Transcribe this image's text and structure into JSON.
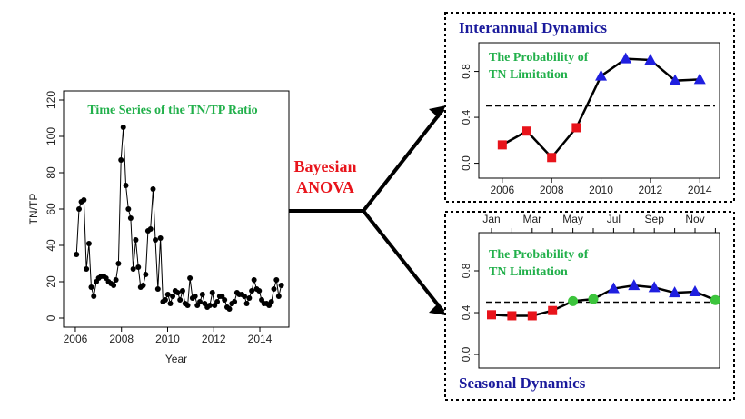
{
  "chart_data": [
    {
      "type": "line",
      "title": "Time Series of the TN/TP Ratio",
      "xlabel": "Year",
      "ylabel": "TN/TP",
      "x": [
        2006.05,
        2006.16,
        2006.26,
        2006.37,
        2006.48,
        2006.59,
        2006.69,
        2006.8,
        2006.91,
        2007.01,
        2007.12,
        2007.23,
        2007.33,
        2007.44,
        2007.55,
        2007.66,
        2007.76,
        2007.87,
        2007.98,
        2008.08,
        2008.19,
        2008.3,
        2008.4,
        2008.51,
        2008.62,
        2008.73,
        2008.83,
        2008.94,
        2009.05,
        2009.15,
        2009.26,
        2009.37,
        2009.47,
        2009.58,
        2009.69,
        2009.8,
        2009.9,
        2010.01,
        2010.12,
        2010.22,
        2010.33,
        2010.44,
        2010.54,
        2010.65,
        2010.76,
        2010.87,
        2010.97,
        2011.08,
        2011.19,
        2011.29,
        2011.4,
        2011.51,
        2011.61,
        2011.72,
        2011.83,
        2011.94,
        2012.04,
        2012.15,
        2012.26,
        2012.36,
        2012.47,
        2012.58,
        2012.68,
        2012.79,
        2012.9,
        2013.01,
        2013.11,
        2013.22,
        2013.33,
        2013.43,
        2013.54,
        2013.65,
        2013.75,
        2013.86,
        2013.97,
        2014.08,
        2014.18,
        2014.29,
        2014.4,
        2014.5,
        2014.61,
        2014.72,
        2014.82,
        2014.93
      ],
      "values": [
        35,
        60,
        64,
        65,
        27,
        41,
        17,
        12,
        20,
        22,
        23,
        23,
        22,
        20,
        19,
        18,
        21,
        30,
        87,
        105,
        73,
        60,
        55,
        27,
        43,
        28,
        17,
        18,
        24,
        48,
        49,
        71,
        43,
        16,
        44,
        9,
        10,
        13,
        8,
        12,
        15,
        14,
        10,
        15,
        8,
        7,
        22,
        11,
        12,
        7,
        9,
        13,
        8,
        6,
        7,
        14,
        7,
        9,
        12,
        12,
        10,
        6,
        5,
        8,
        9,
        14,
        13,
        13,
        12,
        8,
        11,
        15,
        21,
        16,
        15,
        10,
        8,
        8,
        7,
        9,
        16,
        21,
        12,
        18
      ],
      "color": "#000000",
      "xlim": [
        2005.49,
        2015.26
      ],
      "xticks": [
        2006,
        2008,
        2010,
        2012,
        2014
      ],
      "ylim": [
        -5,
        125
      ],
      "yticks": [
        0,
        20,
        40,
        60,
        80,
        100,
        120
      ]
    },
    {
      "type": "line",
      "title": "Interannual Dynamics",
      "annotation": [
        "The Probability of",
        "TN Limitation"
      ],
      "x": [
        2006,
        2007,
        2008,
        2009,
        2010,
        2011,
        2012,
        2013,
        2014
      ],
      "values": [
        0.16,
        0.28,
        0.05,
        0.31,
        0.76,
        0.91,
        0.9,
        0.72,
        0.73
      ],
      "marker_colors": [
        "#e8141b",
        "#e8141b",
        "#e8141b",
        "#e8141b",
        "#1f1fe0",
        "#1f1fe0",
        "#1f1fe0",
        "#1f1fe0",
        "#1f1fe0"
      ],
      "marker_shapes": [
        "square",
        "square",
        "square",
        "square",
        "triangle",
        "triangle",
        "triangle",
        "triangle",
        "triangle"
      ],
      "color": "#000000",
      "reference_line": 0.5,
      "xlim": [
        2005.05,
        2014.8
      ],
      "xticks": [
        2006,
        2008,
        2010,
        2012,
        2014
      ],
      "ylim": [
        -0.13,
        1.05
      ],
      "yticks": [
        {
          "value": 0,
          "label": "0.0"
        },
        0.4,
        0.8
      ]
    },
    {
      "type": "line",
      "title": "Seasonal Dynamics",
      "annotation": [
        "The Probability of",
        "TN Limitation"
      ],
      "categories": [
        "Jan",
        null,
        "Mar",
        null,
        "May",
        null,
        "Jul",
        null,
        "Sep",
        null,
        "Nov",
        null
      ],
      "values": [
        0.38,
        0.37,
        0.37,
        0.42,
        0.51,
        0.53,
        0.63,
        0.66,
        0.64,
        0.59,
        0.6,
        0.52
      ],
      "marker_colors": [
        "#e8141b",
        "#e8141b",
        "#e8141b",
        "#e8141b",
        "#3cc43c",
        "#3cc43c",
        "#1f1fe0",
        "#1f1fe0",
        "#1f1fe0",
        "#1f1fe0",
        "#1f1fe0",
        "#3cc43c"
      ],
      "marker_shapes": [
        "square",
        "square",
        "square",
        "square",
        "circle",
        "circle",
        "triangle",
        "triangle",
        "triangle",
        "triangle",
        "triangle",
        "circle"
      ],
      "color": "#000000",
      "reference_line": 0.5,
      "ylim": [
        -0.13,
        1.165
      ],
      "yticks": [
        {
          "value": 0,
          "label": "0.0"
        },
        0.4,
        0.8
      ]
    }
  ],
  "connector": {
    "label": [
      "Bayesian",
      "ANOVA"
    ]
  }
}
